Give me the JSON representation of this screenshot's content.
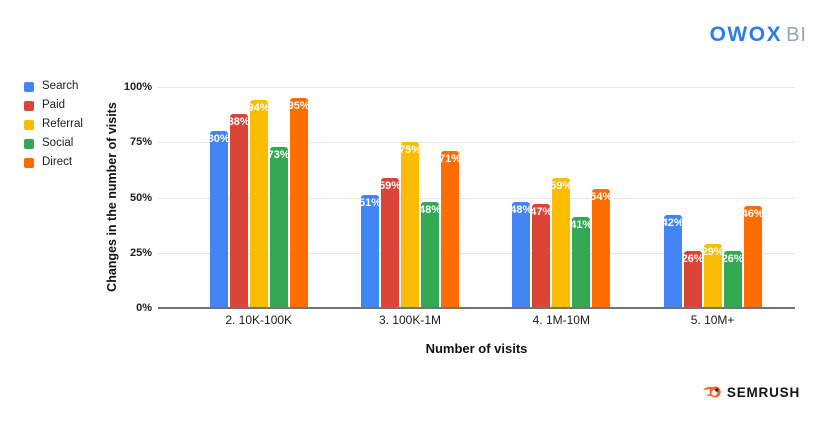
{
  "header": {
    "owox_logo": {
      "main": "OWOX",
      "sub": "BI",
      "main_color": "#2B7DE9",
      "sub_color": "#9BA5AE"
    }
  },
  "chart_data": {
    "type": "bar",
    "title": "",
    "xlabel": "Number of visits",
    "ylabel": "Changes in the number of visits",
    "categories": [
      "2. 10K-100K",
      "3. 100K-1M",
      "4. 1M-10M",
      "5. 10M+"
    ],
    "series": [
      {
        "name": "Search",
        "color": "#4285F4",
        "values": [
          80,
          51,
          48,
          42
        ]
      },
      {
        "name": "Paid",
        "color": "#DB4437",
        "values": [
          88,
          59,
          47,
          26
        ]
      },
      {
        "name": "Referral",
        "color": "#FBBC04",
        "values": [
          94,
          75,
          59,
          29
        ]
      },
      {
        "name": "Social",
        "color": "#34A853",
        "values": [
          73,
          48,
          41,
          26
        ]
      },
      {
        "name": "Direct",
        "color": "#FF6D01",
        "values": [
          95,
          71,
          54,
          46
        ]
      }
    ],
    "value_suffix": "%",
    "y_ticks": [
      "100%",
      "75%",
      "50%",
      "25%",
      "0%"
    ],
    "ylim": [
      0,
      100
    ],
    "grid": true,
    "legend_position": "left",
    "bar_label_color": "#FFFFFF",
    "gridline_color": "#E6E6E6",
    "axis_line_color": "#737373"
  },
  "footer": {
    "semrush_logo": {
      "text": "SEMRUSH",
      "icon": "semrush-fireball-icon",
      "icon_color": "#FF642D",
      "text_color": "#151515"
    }
  }
}
